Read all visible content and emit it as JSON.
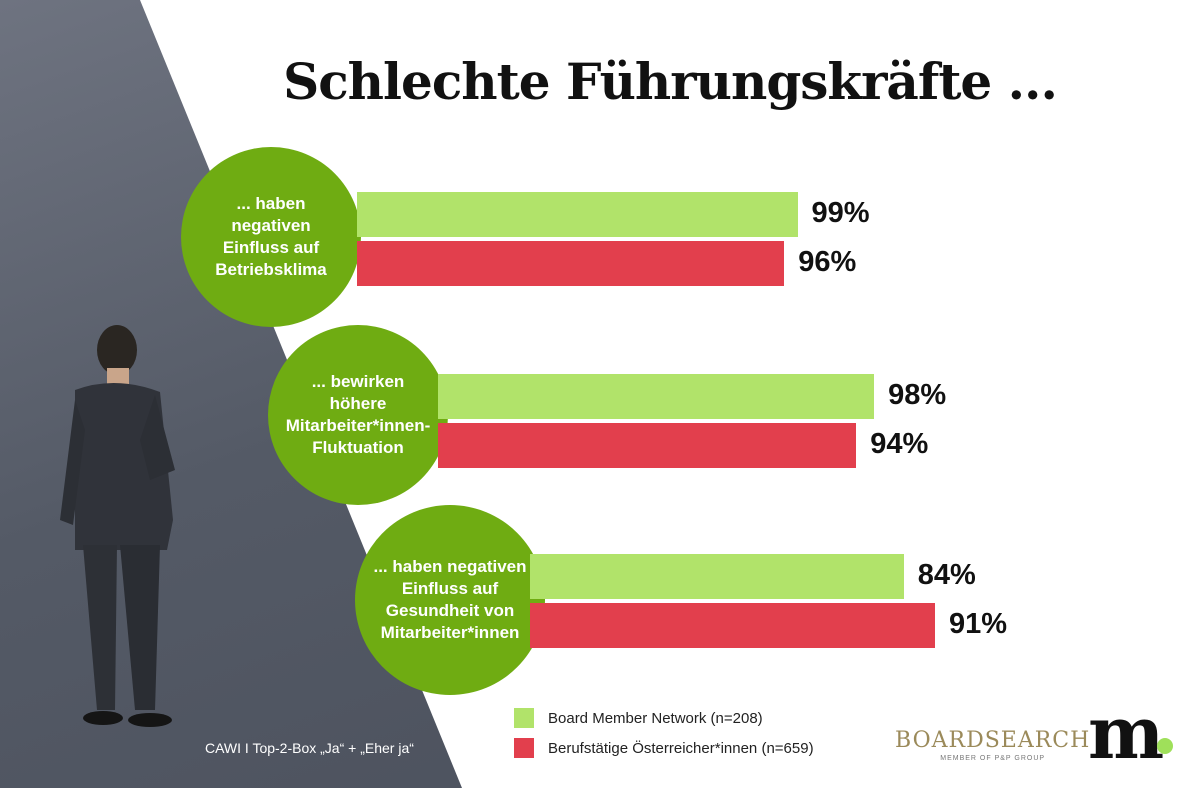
{
  "title": "Schlechte Führungskräfte ...",
  "chart_data": {
    "type": "bar",
    "orientation": "horizontal",
    "title": "Schlechte Führungskräfte ...",
    "categories": [
      "... haben negativen Einfluss auf Betriebsklima",
      "... bewirken höhere Mitarbeiter*innen-Fluktuation",
      "... haben negativen Einfluss auf Gesundheit von Mitarbeiter*innen"
    ],
    "series": [
      {
        "name": "Board Member Network (n=208)",
        "color": "#b1e36a",
        "values": [
          99,
          98,
          84
        ],
        "labels": [
          "99%",
          "98%",
          "84%"
        ]
      },
      {
        "name": "Berufstätige Österreicher*innen (n=659)",
        "color": "#e23f4d",
        "values": [
          96,
          94,
          91
        ],
        "labels": [
          "96%",
          "94%",
          "91%"
        ]
      }
    ],
    "unit": "%"
  },
  "note": "CAWI I Top-2-Box „Ja“ + „Eher ja“",
  "logos": {
    "boardsearch": "BOARDSEARCH",
    "boardsearch_sub": "MEMBER OF P&P GROUP",
    "m": "m."
  }
}
